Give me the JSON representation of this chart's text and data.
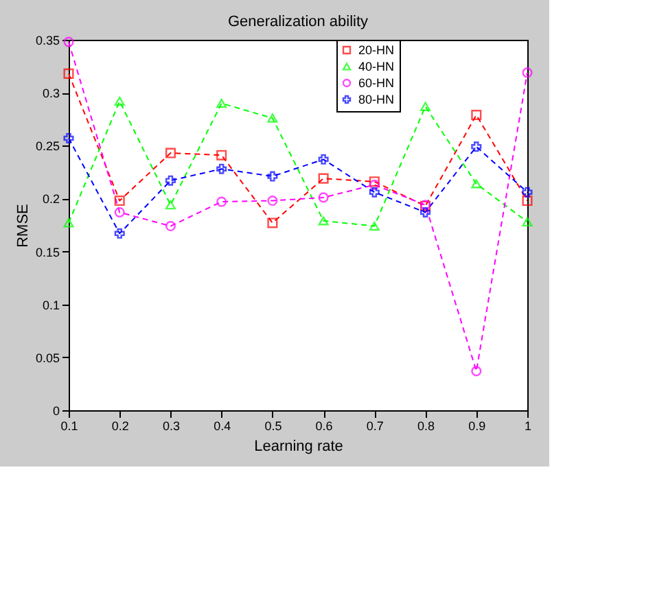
{
  "chart_data": {
    "type": "line",
    "title": "Generalization ability",
    "xlabel": "Learning rate",
    "ylabel": "RMSE",
    "x": [
      0.1,
      0.2,
      0.3,
      0.4,
      0.5,
      0.6,
      0.7,
      0.8,
      0.9,
      1
    ],
    "series": [
      {
        "name": "20-HN",
        "color": "#ff0000",
        "marker": "square",
        "values": [
          0.318,
          0.198,
          0.243,
          0.241,
          0.177,
          0.219,
          0.216,
          0.193,
          0.279,
          0.198
        ]
      },
      {
        "name": "40-HN",
        "color": "#00ff00",
        "marker": "triangle",
        "values": [
          0.177,
          0.292,
          0.194,
          0.29,
          0.276,
          0.179,
          0.174,
          0.287,
          0.214,
          0.178
        ]
      },
      {
        "name": "60-HN",
        "color": "#ff00ff",
        "marker": "circle",
        "values": [
          0.348,
          0.187,
          0.174,
          0.197,
          0.198,
          0.201,
          0.213,
          0.194,
          0.037,
          0.319
        ]
      },
      {
        "name": "80-HN",
        "color": "#0000ff",
        "marker": "cross",
        "values": [
          0.257,
          0.167,
          0.217,
          0.228,
          0.221,
          0.237,
          0.206,
          0.187,
          0.249,
          0.206
        ]
      }
    ],
    "xlim": [
      0.1,
      1
    ],
    "xticks": [
      0.1,
      0.2,
      0.3,
      0.4,
      0.5,
      0.6,
      0.7,
      0.8,
      0.9,
      1
    ],
    "ylim": [
      0,
      0.35
    ],
    "yticks": [
      0,
      0.05,
      0.1,
      0.15,
      0.2,
      0.25,
      0.3,
      0.35
    ],
    "grid": false,
    "legend": "top",
    "line_style": "dashed"
  }
}
